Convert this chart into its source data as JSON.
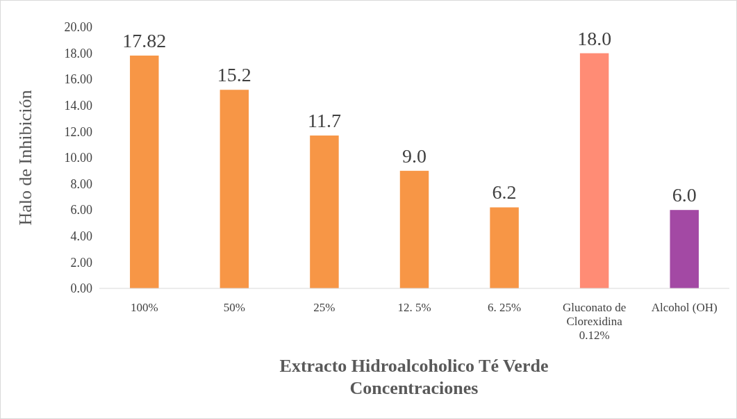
{
  "chart_data": {
    "type": "bar",
    "xlabel": "Extracto Hidroalcoholico Té Verde Concentraciones",
    "ylabel": "Halo de Inhibición",
    "categories": [
      "100%",
      "50%",
      "25%",
      "12. 5%",
      "6. 25%",
      "Gluconato de Clorexidina 0.12%",
      "Alcohol (OH)"
    ],
    "values": [
      17.82,
      15.2,
      11.7,
      9.0,
      6.2,
      18.0,
      6.0
    ],
    "colors": [
      "#f79646",
      "#f79646",
      "#f79646",
      "#f79646",
      "#f79646",
      "#ff8c75",
      "#a349a4"
    ],
    "value_labels": [
      "17.82",
      "15.2",
      "11.7",
      "9.0",
      "6.2",
      "18.0",
      "6.0"
    ],
    "ylim": [
      0,
      20
    ],
    "yticks": [
      {
        "value": 0,
        "label": "0.00"
      },
      {
        "value": 2,
        "label": "2.00"
      },
      {
        "value": 4,
        "label": "4.00"
      },
      {
        "value": 6,
        "label": "6.00"
      },
      {
        "value": 8,
        "label": "8.00"
      },
      {
        "value": 10,
        "label": "10.00"
      },
      {
        "value": 12,
        "label": "12.00"
      },
      {
        "value": 14,
        "label": "14.00"
      },
      {
        "value": 16,
        "label": "16.00"
      },
      {
        "value": 18,
        "label": "18.00"
      },
      {
        "value": 20,
        "label": "20.00"
      }
    ],
    "grid": false
  }
}
